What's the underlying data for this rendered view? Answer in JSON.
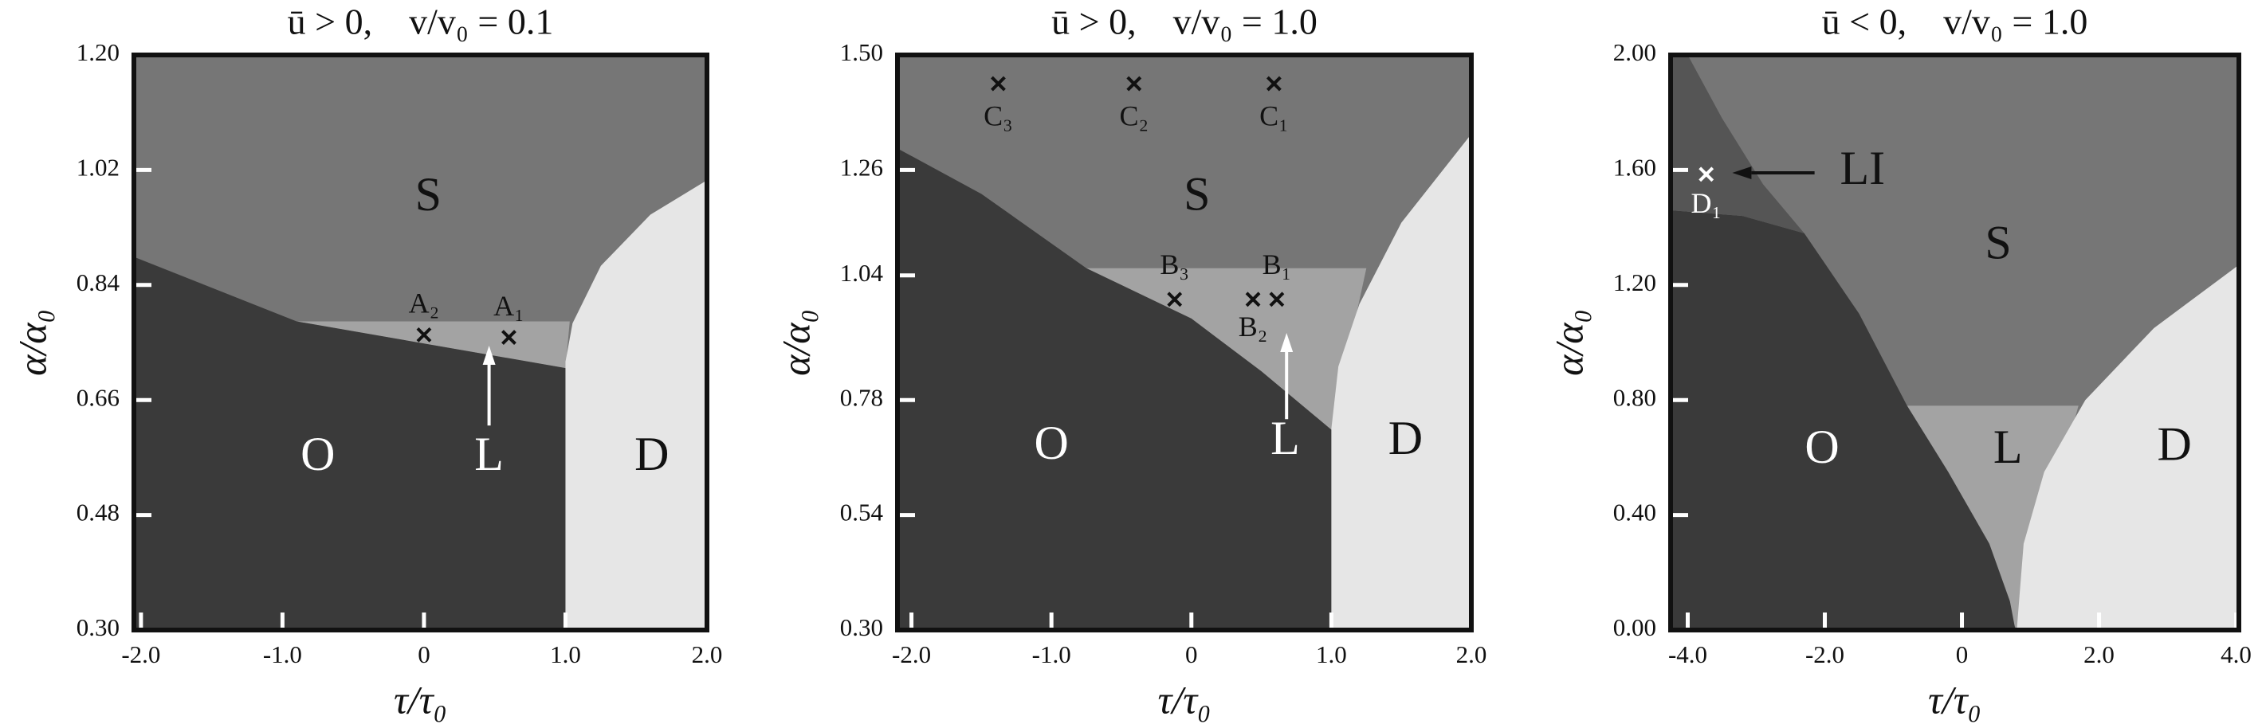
{
  "chart_data": [
    {
      "type": "phase",
      "title": "ū > 0,    v/v₀ = 0.1",
      "xlabel": "τ/τ₀",
      "ylabel": "α/α₀",
      "xlim": [
        -2.05,
        2.0
      ],
      "ylim": [
        0.3,
        1.2
      ],
      "xticks": [
        {
          "value": -2,
          "label": "-2.0"
        },
        {
          "value": -1,
          "label": "-1.0"
        },
        0,
        {
          "value": 1,
          "label": "1.0"
        },
        {
          "value": 2,
          "label": "2.0"
        }
      ],
      "yticks": [
        {
          "value": 0.3,
          "label": "0.30"
        },
        {
          "value": 0.48,
          "label": "0.48"
        },
        {
          "value": 0.66,
          "label": "0.66"
        },
        {
          "value": 0.84,
          "label": "0.84"
        },
        {
          "value": 1.02,
          "label": "1.02"
        },
        {
          "value": 1.2,
          "label": "1.20"
        }
      ],
      "regions": [
        {
          "label": "S",
          "color": "#767676",
          "x": [
            -2.05,
            2.0,
            2.0,
            -2.05
          ],
          "y": [
            1.2,
            1.2,
            0.3,
            0.3
          ]
        },
        {
          "label": "L",
          "color": "#a3a3a3",
          "x": [
            -0.9,
            1.03,
            1.0
          ],
          "y": [
            0.783,
            0.783,
            0.71
          ]
        },
        {
          "label": "O",
          "color": "#3a3a3a",
          "x": [
            -2.05,
            -0.9,
            1.0,
            1.0,
            -2.05
          ],
          "y": [
            0.884,
            0.783,
            0.71,
            0.3,
            0.3
          ]
        },
        {
          "label": "D",
          "color": "#e6e6e6",
          "x": [
            1.0,
            1.0,
            1.05,
            1.25,
            1.6,
            2.0,
            2.0
          ],
          "y": [
            0.3,
            0.72,
            0.78,
            0.87,
            0.95,
            1.004,
            0.3
          ]
        }
      ],
      "points": [
        {
          "label": "A₂",
          "x": 0,
          "y": 0.762,
          "color": "#111111"
        },
        {
          "label": "A₁",
          "x": 0.6,
          "y": 0.758,
          "color": "#111111"
        }
      ]
    },
    {
      "type": "phase",
      "title": "ū > 0,    v/v₀ = 1.0",
      "xlabel": "τ/τ₀",
      "ylabel": "α/α₀",
      "xlim": [
        -2.1,
        2.0
      ],
      "ylim": [
        0.3,
        1.5
      ],
      "xticks": [
        {
          "value": -2,
          "label": "-2.0"
        },
        {
          "value": -1,
          "label": "-1.0"
        },
        0,
        {
          "value": 1,
          "label": "1.0"
        },
        {
          "value": 2,
          "label": "2.0"
        }
      ],
      "yticks": [
        {
          "value": 0.3,
          "label": "0.30"
        },
        {
          "value": 0.54,
          "label": "0.54"
        },
        {
          "value": 0.78,
          "label": "0.78"
        },
        {
          "value": 1.04,
          "label": "1.04"
        },
        {
          "value": 1.26,
          "label": "1.26"
        },
        {
          "value": 1.5,
          "label": "1.50"
        }
      ],
      "regions": [
        {
          "label": "S",
          "color": "#767676",
          "x": [
            -2.1,
            2.0,
            2.0,
            -2.1
          ],
          "y": [
            1.5,
            1.5,
            0.3,
            0.3
          ]
        },
        {
          "label": "L",
          "color": "#a3a3a3",
          "x": [
            -0.75,
            1.25,
            1.0
          ],
          "y": [
            1.055,
            1.055,
            0.718
          ]
        },
        {
          "label": "O",
          "color": "#3a3a3a",
          "x": [
            -2.1,
            -1.5,
            -0.75,
            0,
            0.5,
            1.0,
            1.0,
            -2.1
          ],
          "y": [
            1.305,
            1.21,
            1.055,
            0.95,
            0.84,
            0.718,
            0.3,
            0.3
          ]
        },
        {
          "label": "D",
          "color": "#e6e6e6",
          "x": [
            1.0,
            1.0,
            1.05,
            1.2,
            1.5,
            2.0,
            2.0
          ],
          "y": [
            0.3,
            0.72,
            0.85,
            0.98,
            1.15,
            1.335,
            0.3
          ]
        }
      ],
      "points": [
        {
          "label": "C₃",
          "x": -1.38,
          "y": 1.44,
          "color": "#111111"
        },
        {
          "label": "C₂",
          "x": -0.41,
          "y": 1.44,
          "color": "#111111"
        },
        {
          "label": "C₁",
          "x": 0.59,
          "y": 1.44,
          "color": "#111111"
        },
        {
          "label": "B₃",
          "x": -0.12,
          "y": 0.99,
          "color": "#111111"
        },
        {
          "label": "B₂",
          "x": 0.44,
          "y": 0.99,
          "color": "#111111"
        },
        {
          "label": "B₁",
          "x": 0.61,
          "y": 0.99,
          "color": "#111111"
        }
      ]
    },
    {
      "type": "phase",
      "title": "ū < 0,    v/v₀ = 1.0",
      "xlabel": "τ/τ₀",
      "ylabel": "α/α₀",
      "xlim": [
        -4.25,
        4.04
      ],
      "ylim": [
        0,
        2.0
      ],
      "xticks": [
        {
          "value": -4,
          "label": "-4.0"
        },
        {
          "value": -2,
          "label": "-2.0"
        },
        0,
        {
          "value": 2,
          "label": "2.0"
        },
        {
          "value": 4,
          "label": "4.0"
        }
      ],
      "yticks": [
        {
          "value": 0,
          "label": "0.00"
        },
        {
          "value": 0.4,
          "label": "0.40"
        },
        {
          "value": 0.8,
          "label": "0.80"
        },
        {
          "value": 1.2,
          "label": "1.20"
        },
        {
          "value": 1.6,
          "label": "1.60"
        },
        {
          "value": 2.0,
          "label": "2.00"
        }
      ],
      "regions": [
        {
          "label": "S",
          "color": "#767676",
          "x": [
            -4.25,
            4.04,
            4.04,
            -4.25
          ],
          "y": [
            2.0,
            2.0,
            0,
            0
          ]
        },
        {
          "label": "L",
          "color": "#a3a3a3",
          "x": [
            -0.8,
            1.7,
            0.8
          ],
          "y": [
            0.78,
            0.78,
            0
          ]
        },
        {
          "label": "O",
          "color": "#3a3a3a",
          "x": [
            -4.25,
            -3.2,
            -2.3,
            -1.5,
            -0.8,
            -0.2,
            0.4,
            0.7,
            0.78,
            -4.25
          ],
          "y": [
            1.46,
            1.44,
            1.38,
            1.1,
            0.78,
            0.55,
            0.3,
            0.1,
            0,
            0
          ]
        },
        {
          "label": "LI",
          "color": "#555555",
          "x": [
            -4.25,
            -4.0,
            -3.5,
            -2.9,
            -2.3,
            -3.2,
            -4.25
          ],
          "y": [
            2.0,
            2.0,
            1.78,
            1.55,
            1.38,
            1.44,
            1.46
          ]
        },
        {
          "label": "D",
          "color": "#e6e6e6",
          "x": [
            0.8,
            0.9,
            1.2,
            1.8,
            2.8,
            4.04,
            4.04
          ],
          "y": [
            0,
            0.3,
            0.55,
            0.8,
            1.05,
            1.27,
            0
          ]
        }
      ],
      "points": [
        {
          "label": "D₁",
          "x": -3.73,
          "y": 1.585,
          "color": "#ffffff"
        }
      ]
    }
  ]
}
